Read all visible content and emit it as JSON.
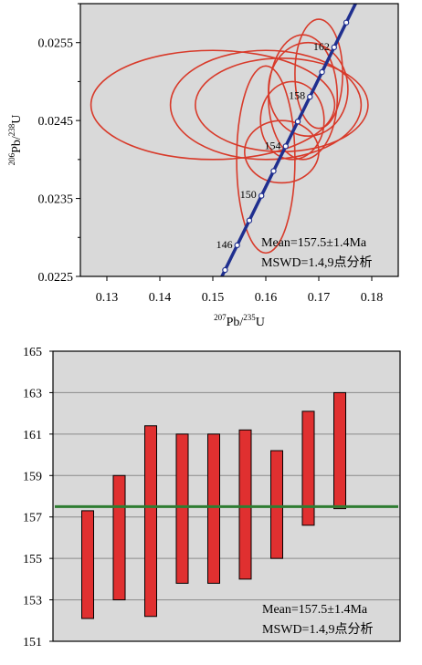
{
  "chart_data": [
    {
      "type": "scatter",
      "subtype": "concordia",
      "xlabel": "207Pb/235U",
      "ylabel": "206Pb/238U",
      "x_ticks": [
        "0.13",
        "0.14",
        "0.15",
        "0.16",
        "0.17",
        "0.18"
      ],
      "y_ticks": [
        "0.0225",
        "0.0235",
        "0.0245",
        "0.0255"
      ],
      "xlim": [
        0.125,
        0.185
      ],
      "ylim": [
        0.0225,
        0.026
      ],
      "grid": false,
      "background": "#d9d9d9",
      "concordia_color": "#1f2f8f",
      "ellipse_color": "#d83a2a",
      "concordia_labels": [
        {
          "age": "146",
          "x": 0.1546,
          "y": 0.0229
        },
        {
          "age": "150",
          "x": 0.1591,
          "y": 0.02354
        },
        {
          "age": "154",
          "x": 0.1637,
          "y": 0.02417
        },
        {
          "age": "158",
          "x": 0.1683,
          "y": 0.02481
        },
        {
          "age": "162",
          "x": 0.1729,
          "y": 0.02544
        }
      ],
      "ellipses": [
        {
          "cx": 0.15,
          "cy": 0.0247,
          "rx": 0.023,
          "ry": 0.0007
        },
        {
          "cx": 0.16,
          "cy": 0.0247,
          "rx": 0.018,
          "ry": 0.0007
        },
        {
          "cx": 0.163,
          "cy": 0.0247,
          "rx": 0.0163,
          "ry": 0.0006
        },
        {
          "cx": 0.167,
          "cy": 0.0248,
          "rx": 0.0065,
          "ry": 0.0008
        },
        {
          "cx": 0.17,
          "cy": 0.0251,
          "rx": 0.0045,
          "ry": 0.0007
        },
        {
          "cx": 0.168,
          "cy": 0.0249,
          "rx": 0.0075,
          "ry": 0.0006
        },
        {
          "cx": 0.165,
          "cy": 0.0245,
          "rx": 0.006,
          "ry": 0.0005
        },
        {
          "cx": 0.163,
          "cy": 0.0241,
          "rx": 0.007,
          "ry": 0.0004
        },
        {
          "cx": 0.16,
          "cy": 0.024,
          "rx": 0.0055,
          "ry": 0.0012
        }
      ],
      "annotation": {
        "line1": "Mean=157.5±1.4Ma",
        "line2": "MSWD=1.4,9点分析"
      }
    },
    {
      "type": "bar",
      "subtype": "weighted-mean",
      "ylim": [
        151,
        165
      ],
      "y_ticks": [
        "151",
        "153",
        "155",
        "157",
        "159",
        "161",
        "163",
        "165"
      ],
      "grid": true,
      "background": "#d9d9d9",
      "bar_color": "#e03030",
      "mean": 157.5,
      "mean_line_color": "#2e7d32",
      "bars": [
        {
          "low": 152.1,
          "high": 157.3
        },
        {
          "low": 153.0,
          "high": 159.0
        },
        {
          "low": 152.2,
          "high": 161.4
        },
        {
          "low": 153.8,
          "high": 161.0
        },
        {
          "low": 153.8,
          "high": 161.0
        },
        {
          "low": 154.0,
          "high": 161.2
        },
        {
          "low": 155.0,
          "high": 160.2
        },
        {
          "low": 156.6,
          "high": 162.1
        },
        {
          "low": 157.4,
          "high": 163.0
        }
      ],
      "annotation": {
        "line1": "Mean=157.5±1.4Ma",
        "line2": "MSWD=1.4,9点分析"
      }
    }
  ]
}
